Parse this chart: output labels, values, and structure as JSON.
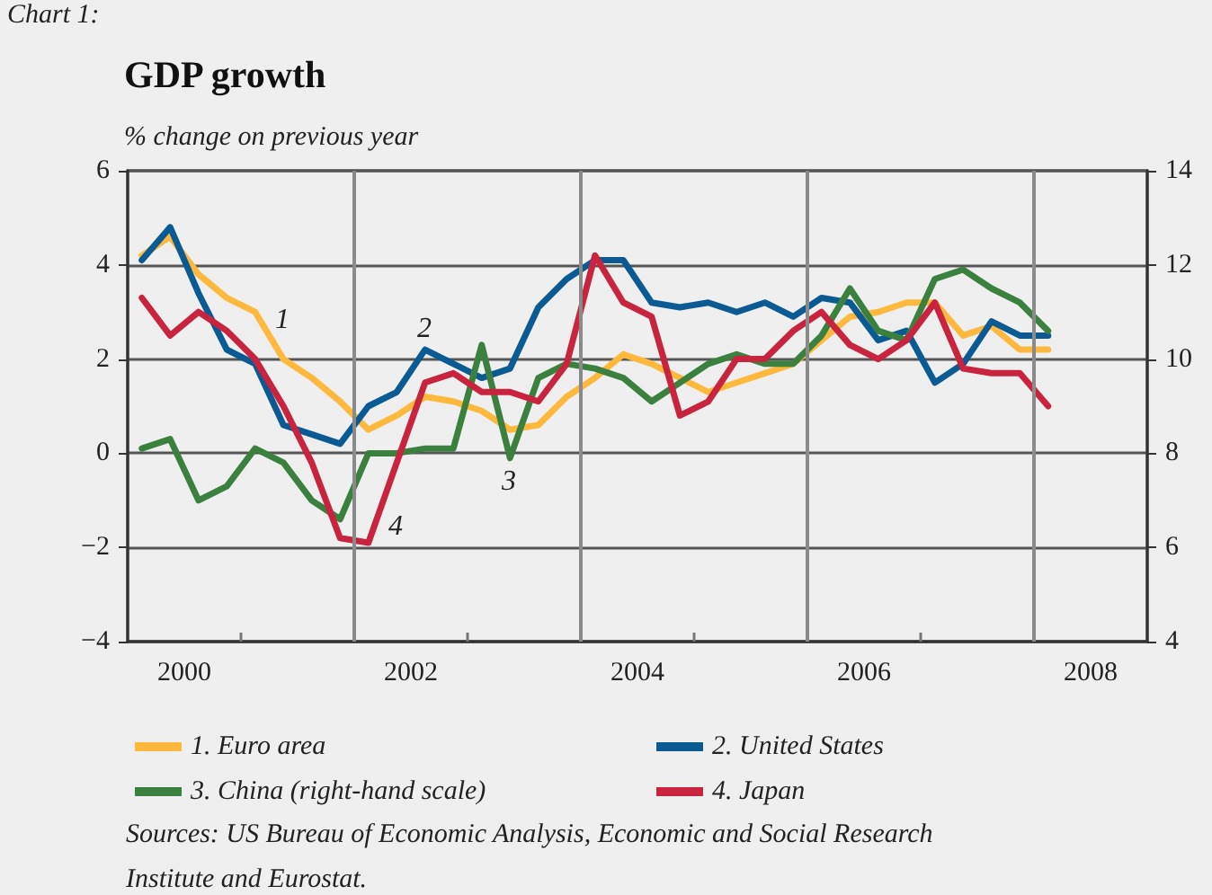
{
  "chart_data": {
    "type": "line",
    "title": "GDP growth",
    "subtitle": "% change on previous year",
    "x": [
      2000.125,
      2000.375,
      2000.625,
      2000.875,
      2001.125,
      2001.375,
      2001.625,
      2001.875,
      2002.125,
      2002.375,
      2002.625,
      2002.875,
      2003.125,
      2003.375,
      2003.625,
      2003.875,
      2004.125,
      2004.375,
      2004.625,
      2004.875,
      2005.125,
      2005.375,
      2005.625,
      2005.875,
      2006.125,
      2006.375,
      2006.625,
      2006.875,
      2007.125,
      2007.375,
      2007.625,
      2007.875,
      2008.125
    ],
    "series": [
      {
        "name": "1. Euro area",
        "color": "#fdb93e",
        "values": [
          4.2,
          4.6,
          3.8,
          3.3,
          3.0,
          2.0,
          1.6,
          1.1,
          0.5,
          0.8,
          1.2,
          1.1,
          0.9,
          0.5,
          0.6,
          1.2,
          1.6,
          2.1,
          1.9,
          1.6,
          1.3,
          1.5,
          1.7,
          1.9,
          2.4,
          2.9,
          3.0,
          3.2,
          3.2,
          2.5,
          2.7,
          2.2,
          2.2
        ]
      },
      {
        "name": "2. United States",
        "color": "#0b5a92",
        "values": [
          4.1,
          4.8,
          3.4,
          2.2,
          1.9,
          0.6,
          0.4,
          0.2,
          1.0,
          1.3,
          2.2,
          1.9,
          1.6,
          1.8,
          3.1,
          3.7,
          4.1,
          4.1,
          3.2,
          3.1,
          3.2,
          3.0,
          3.2,
          2.9,
          3.3,
          3.2,
          2.4,
          2.6,
          1.5,
          1.9,
          2.8,
          2.5,
          2.5
        ]
      },
      {
        "name": "3. China (right-hand scale)",
        "color": "#3c8040",
        "axis": "y2",
        "values": [
          8.1,
          8.3,
          7.0,
          7.3,
          8.1,
          7.8,
          7.0,
          6.6,
          8.0,
          8.0,
          8.1,
          8.1,
          10.3,
          7.9,
          9.6,
          9.9,
          9.8,
          9.6,
          9.1,
          9.5,
          9.9,
          10.1,
          9.9,
          9.9,
          10.5,
          11.5,
          10.6,
          10.4,
          11.7,
          11.9,
          11.5,
          11.2,
          10.6
        ]
      },
      {
        "name": "4. Japan",
        "color": "#c8243f",
        "values": [
          3.3,
          2.5,
          3.0,
          2.6,
          2.0,
          1.0,
          -0.2,
          -1.8,
          -1.9,
          -0.2,
          1.5,
          1.7,
          1.3,
          1.3,
          1.1,
          1.9,
          4.2,
          3.2,
          2.9,
          0.8,
          1.1,
          2.0,
          2.0,
          2.6,
          3.0,
          2.3,
          2.0,
          2.4,
          3.2,
          1.8,
          1.7,
          1.7,
          1.0
        ]
      }
    ],
    "xlim": [
      2000,
      2009
    ],
    "xticks": [
      {
        "value": 2000.5,
        "label": "2000"
      },
      {
        "value": 2001,
        "label": null
      },
      {
        "value": 2002.5,
        "label": "2002"
      },
      {
        "value": 2003,
        "label": null
      },
      {
        "value": 2004.5,
        "label": "2004"
      },
      {
        "value": 2005,
        "label": null
      },
      {
        "value": 2006.5,
        "label": "2006"
      },
      {
        "value": 2007,
        "label": null
      },
      {
        "value": 2008.5,
        "label": "2008"
      }
    ],
    "ylim": [
      -4,
      6
    ],
    "yticks": [
      {
        "value": -4,
        "label": "−4"
      },
      {
        "value": -2,
        "label": "−2"
      },
      0,
      2,
      4,
      6
    ],
    "y2lim": [
      4,
      14
    ],
    "y2ticks": [
      4,
      6,
      8,
      10,
      12,
      14
    ],
    "ref_lines": [
      {
        "axis": "x",
        "value": 2002,
        "color": "#8a8a8a"
      },
      {
        "axis": "x",
        "value": 2004,
        "color": "#8a8a8a"
      },
      {
        "axis": "x",
        "value": 2006,
        "color": "#8a8a8a"
      },
      {
        "axis": "x",
        "value": 2008,
        "color": "#8a8a8a"
      }
    ],
    "annotations": [
      "Chart 1:",
      "1",
      "2",
      "3",
      "4",
      "Sources: US Bureau of Economic Analysis, Economic and Social Research Institute and Eurostat."
    ],
    "grid": "y",
    "legend": "bottom",
    "marker": "none",
    "line_style": "solid"
  }
}
